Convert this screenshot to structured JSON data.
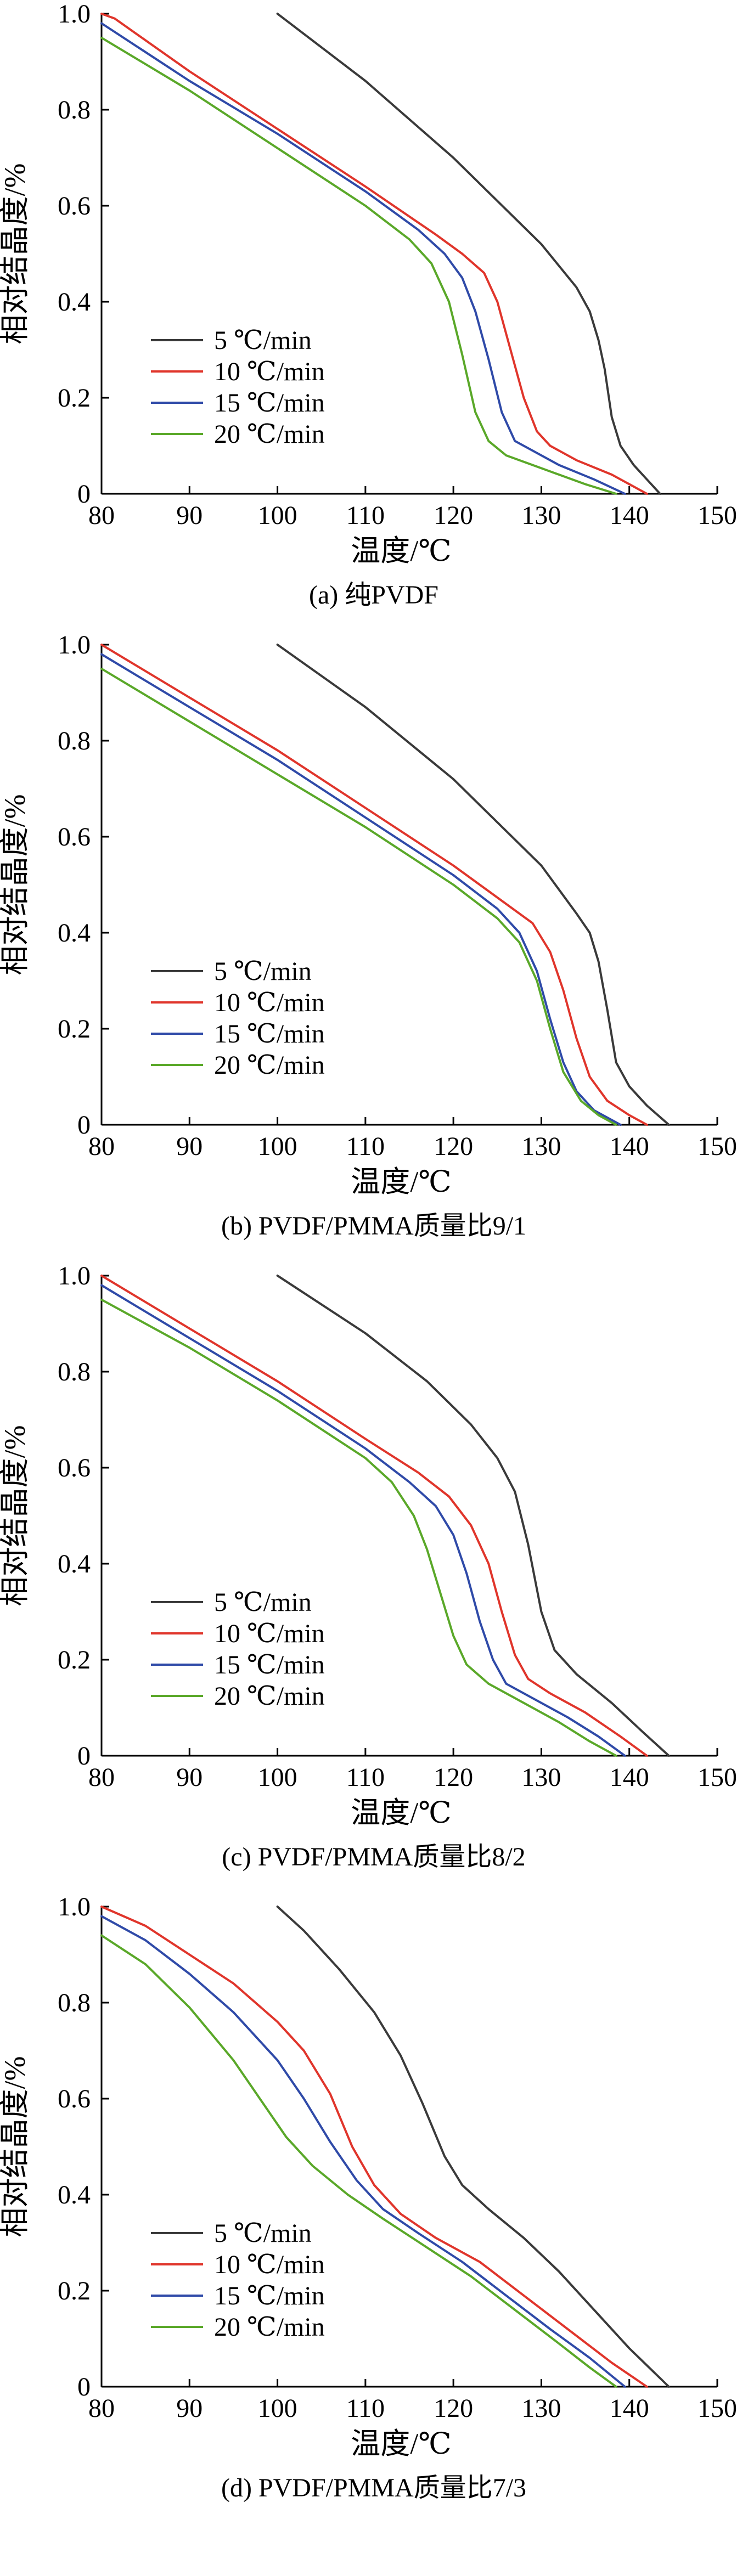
{
  "figure": {
    "panels": [
      {
        "caption": "(a) 纯PVDF",
        "chart_data": {
          "type": "line",
          "xlabel": "温度/℃",
          "ylabel": "相对结晶度/%",
          "xlim": [
            80,
            150
          ],
          "ylim": [
            0,
            1.0
          ],
          "xticks": [
            "80",
            "90",
            "100",
            "110",
            "120",
            "130",
            "140",
            "150"
          ],
          "yticks": [
            "0",
            "0.2",
            "0.4",
            "0.6",
            "0.8",
            "1.0"
          ],
          "grid": false,
          "legend_position": "lower-left",
          "series": [
            {
              "name": "5 ℃/min",
              "color": "#3a3a3a",
              "x": [
                100,
                110,
                120,
                130,
                134,
                135.5,
                136.5,
                137.2,
                138,
                139,
                140.5,
                142,
                143.5
              ],
              "y": [
                1.0,
                0.86,
                0.7,
                0.52,
                0.43,
                0.38,
                0.32,
                0.26,
                0.16,
                0.1,
                0.06,
                0.03,
                0.0
              ]
            },
            {
              "name": "10 ℃/min",
              "color": "#e0352b",
              "x": [
                80,
                81.5,
                90,
                100,
                110,
                118,
                121,
                123.5,
                125,
                126.5,
                128,
                129.5,
                131,
                134,
                138,
                142
              ],
              "y": [
                1.0,
                0.99,
                0.88,
                0.76,
                0.64,
                0.54,
                0.5,
                0.46,
                0.4,
                0.3,
                0.2,
                0.13,
                0.1,
                0.07,
                0.04,
                0.0
              ]
            },
            {
              "name": "15 ℃/min",
              "color": "#2f4aa8",
              "x": [
                80,
                90,
                100,
                110,
                116,
                119,
                121,
                122.5,
                124,
                125.5,
                127,
                129,
                132,
                136,
                139.5
              ],
              "y": [
                0.98,
                0.86,
                0.75,
                0.63,
                0.55,
                0.5,
                0.45,
                0.38,
                0.28,
                0.17,
                0.11,
                0.09,
                0.06,
                0.03,
                0.0
              ]
            },
            {
              "name": "20 ℃/min",
              "color": "#5aa829",
              "x": [
                80,
                90,
                100,
                110,
                115,
                117.5,
                119.5,
                121,
                122.5,
                124,
                126,
                129,
                132,
                135,
                138.5
              ],
              "y": [
                0.95,
                0.84,
                0.72,
                0.6,
                0.53,
                0.48,
                0.4,
                0.29,
                0.17,
                0.11,
                0.08,
                0.06,
                0.04,
                0.02,
                0.0
              ]
            }
          ]
        }
      },
      {
        "caption": "(b) PVDF/PMMA质量比9/1",
        "chart_data": {
          "type": "line",
          "xlabel": "温度/℃",
          "ylabel": "相对结晶度/%",
          "xlim": [
            80,
            150
          ],
          "ylim": [
            0,
            1.0
          ],
          "xticks": [
            "80",
            "90",
            "100",
            "110",
            "120",
            "130",
            "140",
            "150"
          ],
          "yticks": [
            "0",
            "0.2",
            "0.4",
            "0.6",
            "0.8",
            "1.0"
          ],
          "grid": false,
          "legend_position": "lower-left",
          "series": [
            {
              "name": "5 ℃/min",
              "color": "#3a3a3a",
              "x": [
                100,
                110,
                120,
                130,
                134,
                135.5,
                136.5,
                137.5,
                138.5,
                140,
                142,
                144.5
              ],
              "y": [
                1.0,
                0.87,
                0.72,
                0.54,
                0.44,
                0.4,
                0.34,
                0.24,
                0.13,
                0.08,
                0.04,
                0.0
              ]
            },
            {
              "name": "10 ℃/min",
              "color": "#e0352b",
              "x": [
                80,
                90,
                100,
                110,
                120,
                126,
                129,
                131,
                132.5,
                134,
                135.5,
                137.5,
                140,
                142
              ],
              "y": [
                1.0,
                0.89,
                0.78,
                0.66,
                0.54,
                0.46,
                0.42,
                0.36,
                0.28,
                0.18,
                0.1,
                0.05,
                0.02,
                0.0
              ]
            },
            {
              "name": "15 ℃/min",
              "color": "#2f4aa8",
              "x": [
                80,
                90,
                100,
                110,
                120,
                125,
                127.5,
                129.5,
                131,
                132.5,
                134,
                136,
                139
              ],
              "y": [
                0.98,
                0.87,
                0.76,
                0.64,
                0.52,
                0.45,
                0.4,
                0.32,
                0.22,
                0.13,
                0.07,
                0.03,
                0.0
              ]
            },
            {
              "name": "20 ℃/min",
              "color": "#5aa829",
              "x": [
                80,
                90,
                100,
                110,
                120,
                125,
                127.5,
                129.5,
                131,
                132.5,
                134.5,
                136.5,
                138.5
              ],
              "y": [
                0.95,
                0.84,
                0.73,
                0.62,
                0.5,
                0.43,
                0.38,
                0.3,
                0.2,
                0.11,
                0.05,
                0.02,
                0.0
              ]
            }
          ]
        }
      },
      {
        "caption": "(c) PVDF/PMMA质量比8/2",
        "chart_data": {
          "type": "line",
          "xlabel": "温度/℃",
          "ylabel": "相对结晶度/%",
          "xlim": [
            80,
            150
          ],
          "ylim": [
            0,
            1.0
          ],
          "xticks": [
            "80",
            "90",
            "100",
            "110",
            "120",
            "130",
            "140",
            "150"
          ],
          "yticks": [
            "0",
            "0.2",
            "0.4",
            "0.6",
            "0.8",
            "1.0"
          ],
          "grid": false,
          "legend_position": "lower-left",
          "series": [
            {
              "name": "5 ℃/min",
              "color": "#3a3a3a",
              "x": [
                100,
                110,
                117,
                122,
                125,
                127,
                128.5,
                130,
                131.5,
                134,
                138,
                141.5,
                144.5
              ],
              "y": [
                1.0,
                0.88,
                0.78,
                0.69,
                0.62,
                0.55,
                0.44,
                0.3,
                0.22,
                0.17,
                0.11,
                0.05,
                0.0
              ]
            },
            {
              "name": "10 ℃/min",
              "color": "#e0352b",
              "x": [
                80,
                90,
                100,
                110,
                116,
                119.5,
                122,
                124,
                125.5,
                127,
                128.5,
                131,
                135,
                139,
                142
              ],
              "y": [
                1.0,
                0.89,
                0.78,
                0.66,
                0.59,
                0.54,
                0.48,
                0.4,
                0.3,
                0.21,
                0.16,
                0.13,
                0.09,
                0.04,
                0.0
              ]
            },
            {
              "name": "15 ℃/min",
              "color": "#2f4aa8",
              "x": [
                80,
                90,
                100,
                110,
                115,
                118,
                120,
                121.5,
                123,
                124.5,
                126,
                129,
                133,
                136.5,
                139.5
              ],
              "y": [
                0.98,
                0.87,
                0.76,
                0.64,
                0.57,
                0.52,
                0.46,
                0.38,
                0.28,
                0.2,
                0.15,
                0.12,
                0.08,
                0.04,
                0.0
              ]
            },
            {
              "name": "20 ℃/min",
              "color": "#5aa829",
              "x": [
                80,
                90,
                100,
                110,
                113,
                115.5,
                117,
                118.5,
                120,
                121.5,
                124,
                128,
                132,
                135.5,
                138.5
              ],
              "y": [
                0.95,
                0.85,
                0.74,
                0.62,
                0.57,
                0.5,
                0.43,
                0.34,
                0.25,
                0.19,
                0.15,
                0.11,
                0.07,
                0.03,
                0.0
              ]
            }
          ]
        }
      },
      {
        "caption": "(d) PVDF/PMMA质量比7/3",
        "chart_data": {
          "type": "line",
          "xlabel": "温度/℃",
          "ylabel": "相对结晶度/%",
          "xlim": [
            80,
            150
          ],
          "ylim": [
            0,
            1.0
          ],
          "xticks": [
            "80",
            "90",
            "100",
            "110",
            "120",
            "130",
            "140",
            "150"
          ],
          "yticks": [
            "0",
            "0.2",
            "0.4",
            "0.6",
            "0.8",
            "1.0"
          ],
          "grid": false,
          "legend_position": "lower-left",
          "series": [
            {
              "name": "5 ℃/min",
              "color": "#3a3a3a",
              "x": [
                100,
                103,
                107,
                111,
                114,
                116.5,
                119,
                121,
                124,
                128,
                132,
                136,
                140,
                144.5
              ],
              "y": [
                1.0,
                0.95,
                0.87,
                0.78,
                0.69,
                0.59,
                0.48,
                0.42,
                0.37,
                0.31,
                0.24,
                0.16,
                0.08,
                0.0
              ]
            },
            {
              "name": "10 ℃/min",
              "color": "#e0352b",
              "x": [
                80,
                85,
                90,
                95,
                100,
                103,
                106,
                108.5,
                111,
                114,
                118,
                123,
                128,
                133,
                138,
                142
              ],
              "y": [
                1.0,
                0.96,
                0.9,
                0.84,
                0.76,
                0.7,
                0.61,
                0.5,
                0.42,
                0.36,
                0.31,
                0.26,
                0.19,
                0.12,
                0.05,
                0.0
              ]
            },
            {
              "name": "15 ℃/min",
              "color": "#2f4aa8",
              "x": [
                80,
                85,
                90,
                95,
                100,
                103,
                106,
                109,
                112,
                116,
                121,
                126,
                131,
                135.5,
                139.5
              ],
              "y": [
                0.98,
                0.93,
                0.86,
                0.78,
                0.68,
                0.6,
                0.51,
                0.43,
                0.37,
                0.32,
                0.26,
                0.19,
                0.12,
                0.06,
                0.0
              ]
            },
            {
              "name": "20 ℃/min",
              "color": "#5aa829",
              "x": [
                80,
                85,
                90,
                95,
                98,
                101,
                104,
                108,
                112,
                117,
                122,
                127,
                132,
                135.5,
                138.5
              ],
              "y": [
                0.94,
                0.88,
                0.79,
                0.68,
                0.6,
                0.52,
                0.46,
                0.4,
                0.35,
                0.29,
                0.23,
                0.16,
                0.09,
                0.04,
                0.0
              ]
            }
          ]
        }
      }
    ]
  }
}
